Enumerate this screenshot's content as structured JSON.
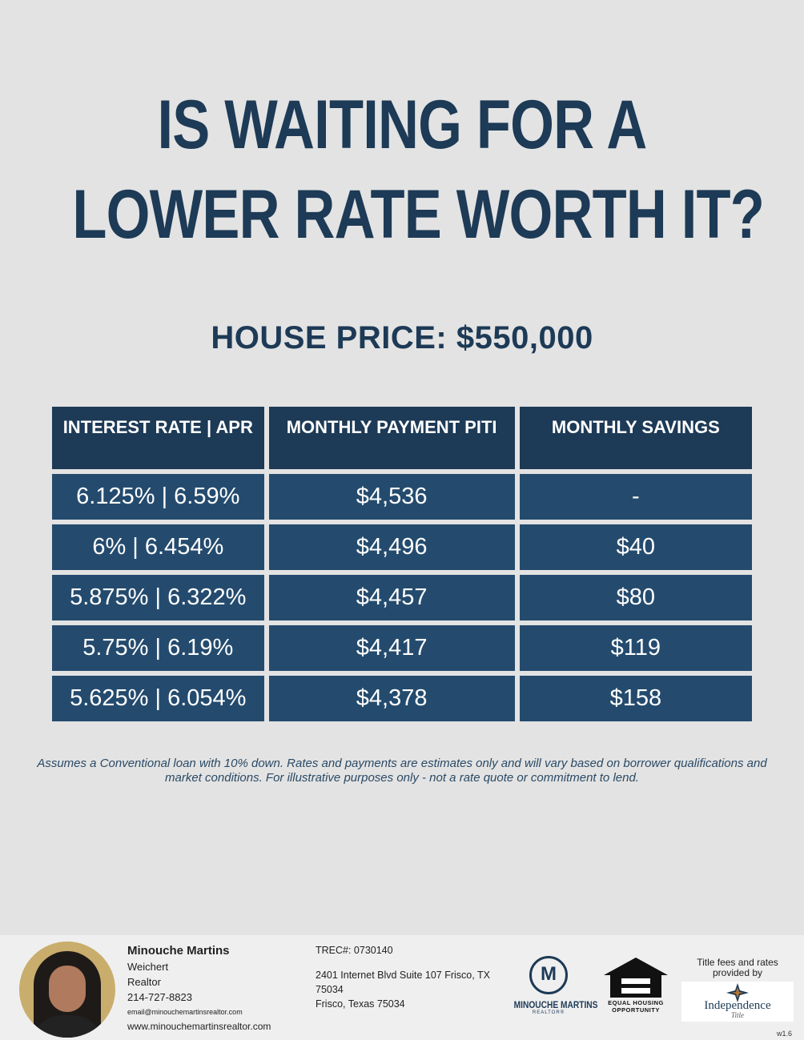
{
  "headline": {
    "line1": "IS WAITING FOR A",
    "line2": "LOWER RATE WORTH IT?"
  },
  "house_price": "HOUSE PRICE: $550,000",
  "table": {
    "headers": [
      "INTEREST RATE | APR",
      "MONTHLY PAYMENT PITI",
      "MONTHLY SAVINGS"
    ],
    "rows": [
      [
        "6.125% | 6.59%",
        "$4,536",
        "-"
      ],
      [
        "6% | 6.454%",
        "$4,496",
        "$40"
      ],
      [
        "5.875% | 6.322%",
        "$4,457",
        "$80"
      ],
      [
        "5.75% | 6.19%",
        "$4,417",
        "$119"
      ],
      [
        "5.625% | 6.054%",
        "$4,378",
        "$158"
      ]
    ]
  },
  "disclaimer": "Assumes a Conventional loan with 10% down. Rates and payments are estimates only and will vary based on borrower qualifications and market conditions. For illustrative purposes only - not a rate quote or commitment to lend.",
  "agent": {
    "name": "Minouche Martins",
    "company": "Weichert",
    "title": "Realtor",
    "phone": "214-727-8823",
    "email": "email@minouchemartinsrealtor.com",
    "website": "www.minouchemartinsrealtor.com"
  },
  "office": {
    "trec": "TREC#: 0730140",
    "address1": "2401 Internet Blvd Suite 107 Frisco, TX 75034",
    "address2": "Frisco, Texas 75034"
  },
  "logos": {
    "agent_logo_text": "MINOUCHE MARTINS",
    "agent_logo_sub": "REALTOR®",
    "agent_logo_mark": "M",
    "eho_line1": "EQUAL HOUSING",
    "eho_line2": "OPPORTUNITY",
    "title_provider_note": "Title fees and rates provided by",
    "title_company": "Independence",
    "title_company_tag": "Title"
  },
  "version": "w1.6",
  "colors": {
    "navy": "#1d3a56",
    "cell": "#244b6e",
    "background": "#e3e3e3"
  }
}
